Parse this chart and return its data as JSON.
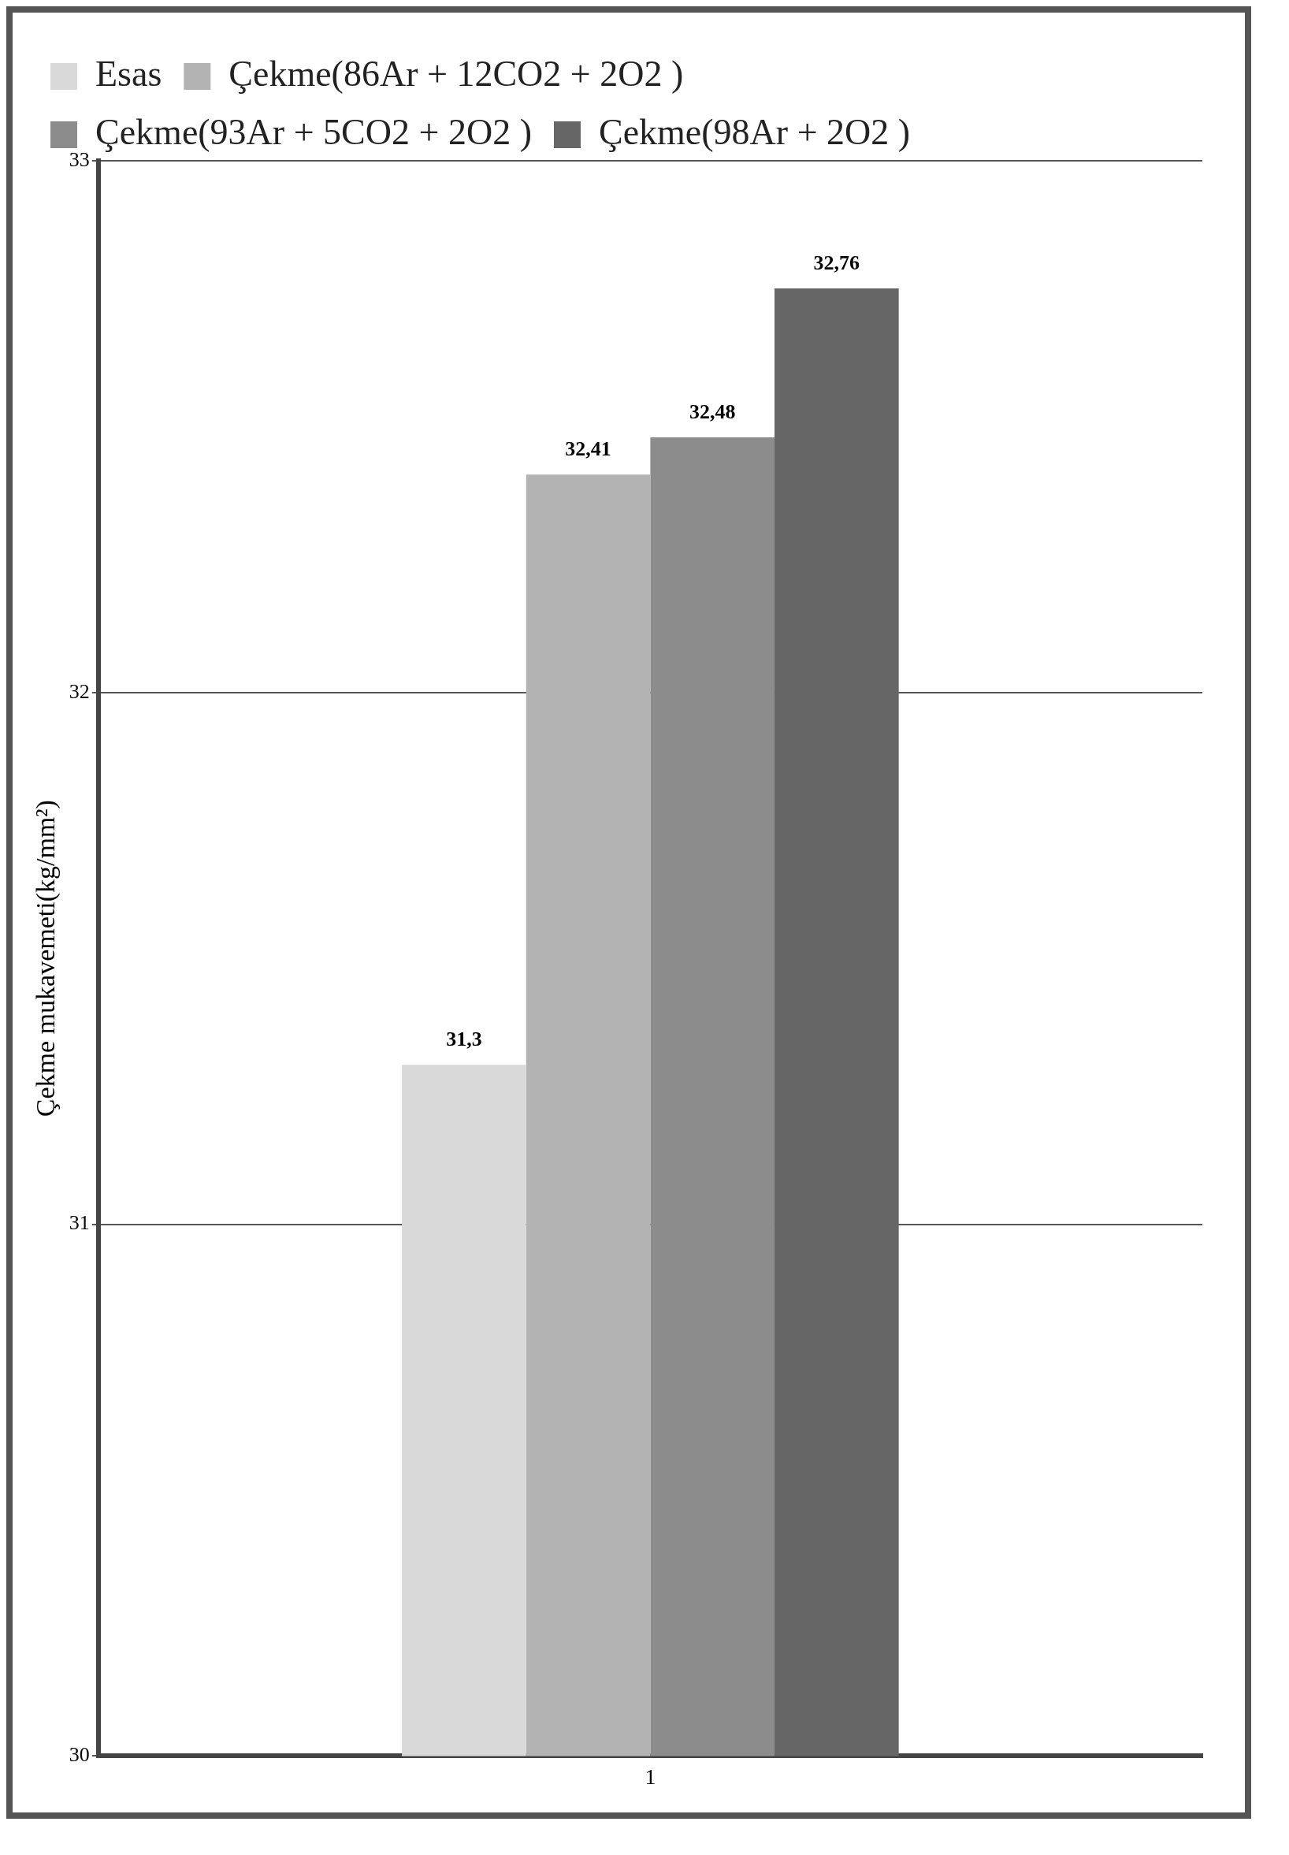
{
  "chart_data": {
    "type": "bar",
    "ylabel": "Çekme mukavemeti(kg/mm²)",
    "categories": [
      "1"
    ],
    "series": [
      {
        "name": "Esas",
        "color": "#d9d9d9",
        "values": [
          31.3
        ],
        "value_labels": [
          "31,3"
        ]
      },
      {
        "name": "Çekme(86Ar + 12CO2 + 2O2 )",
        "color": "#b3b3b3",
        "values": [
          32.41
        ],
        "value_labels": [
          "32,41"
        ]
      },
      {
        "name": "Çekme(93Ar + 5CO2 + 2O2 )",
        "color": "#8c8c8c",
        "values": [
          32.48
        ],
        "value_labels": [
          "32,48"
        ]
      },
      {
        "name": "Çekme(98Ar + 2O2 )",
        "color": "#666666",
        "values": [
          32.76
        ],
        "value_labels": [
          "32,76"
        ]
      }
    ],
    "ylim": [
      30,
      33
    ],
    "yticks": [
      30,
      31,
      32,
      33
    ],
    "grid": "y",
    "legend": "top"
  }
}
